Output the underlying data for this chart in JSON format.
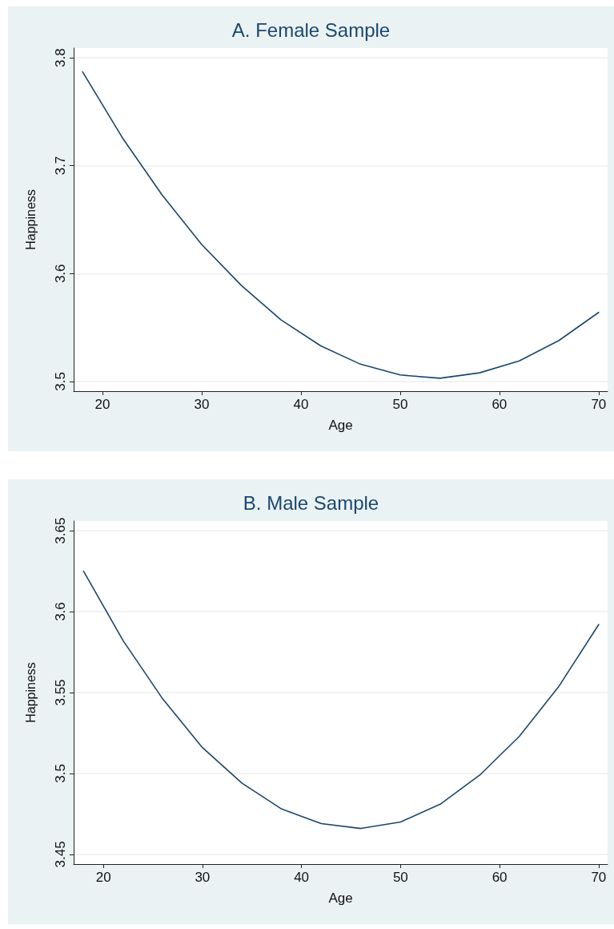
{
  "chart_data": [
    {
      "type": "line",
      "title": "A. Female Sample",
      "xlabel": "Age",
      "ylabel": "Happiness",
      "x": [
        18,
        22,
        26,
        30,
        34,
        38,
        42,
        46,
        50,
        54,
        58,
        62,
        66,
        70
      ],
      "series": [
        {
          "color": "#1a476f",
          "values": [
            3.787,
            3.726,
            3.673,
            3.627,
            3.589,
            3.557,
            3.533,
            3.516,
            3.506,
            3.503,
            3.508,
            3.519,
            3.538,
            3.564
          ]
        }
      ],
      "xlim": [
        17.1,
        70.9
      ],
      "xticks": [
        20,
        30,
        40,
        50,
        60,
        70
      ],
      "ylim": [
        3.491,
        3.809
      ],
      "yticks": [
        3.5,
        3.6,
        3.7,
        3.8
      ],
      "grid": "y",
      "marker": "none",
      "line_style": "solid"
    },
    {
      "type": "line",
      "title": "B. Male Sample",
      "xlabel": "Age",
      "ylabel": "Happiness",
      "x": [
        18,
        22,
        26,
        30,
        34,
        38,
        42,
        46,
        50,
        54,
        58,
        62,
        66,
        70
      ],
      "series": [
        {
          "color": "#1a476f",
          "values": [
            3.625,
            3.582,
            3.546,
            3.516,
            3.494,
            3.478,
            3.469,
            3.466,
            3.47,
            3.481,
            3.499,
            3.523,
            3.554,
            3.592
          ]
        }
      ],
      "xlim": [
        17.0,
        70.9
      ],
      "xticks": [
        20,
        30,
        40,
        50,
        60,
        70
      ],
      "ylim": [
        3.444,
        3.656
      ],
      "yticks": [
        3.45,
        3.5,
        3.55,
        3.6,
        3.65
      ],
      "grid": "y",
      "marker": "none",
      "line_style": "solid"
    }
  ]
}
